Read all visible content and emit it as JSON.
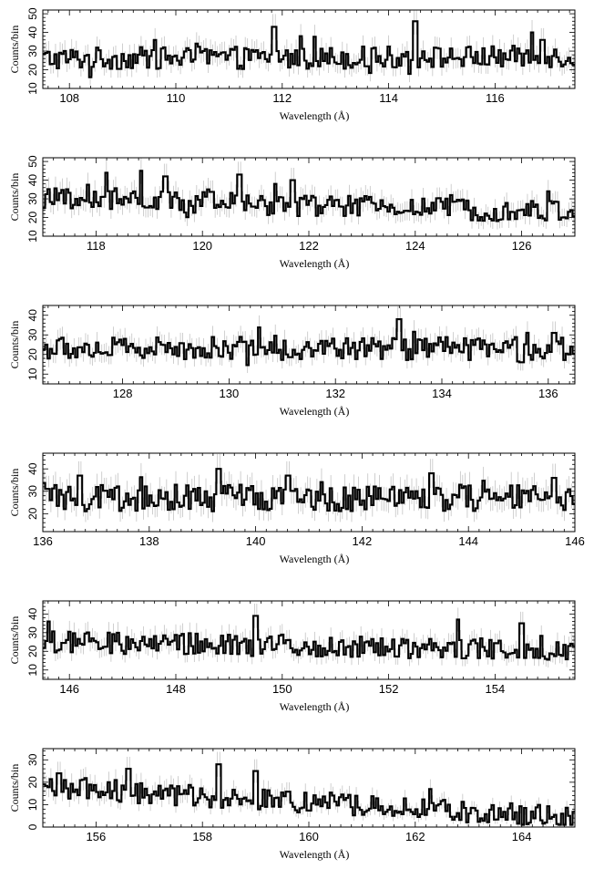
{
  "figure": {
    "description_colors": {
      "axis": "#000000",
      "histogram": "#000000",
      "error_bars": "#bbbbbb"
    }
  },
  "chart_data": [
    {
      "type": "line",
      "style": "histogram-step-with-error-bars",
      "xlabel": "Wavelength (Å)",
      "ylabel": "Counts/bin",
      "xlim": [
        107.5,
        117.5
      ],
      "ylim": [
        10,
        52
      ],
      "xticks": [
        108,
        110,
        112,
        114,
        116
      ],
      "yticks": [
        10,
        20,
        30,
        40,
        50
      ],
      "grid": false,
      "y_profile": {
        "x": [
          107.5,
          117.5
        ],
        "y": [
          26,
          27
        ]
      },
      "spikes": [
        {
          "x": 108.4,
          "y": 16
        },
        {
          "x": 109.6,
          "y": 36
        },
        {
          "x": 110.4,
          "y": 34
        },
        {
          "x": 111.85,
          "y": 43
        },
        {
          "x": 112.35,
          "y": 38
        },
        {
          "x": 114.5,
          "y": 46
        },
        {
          "x": 116.7,
          "y": 40
        },
        {
          "x": 116.9,
          "y": 36
        }
      ],
      "noise_amplitude": 6
    },
    {
      "type": "line",
      "style": "histogram-step-with-error-bars",
      "xlabel": "Wavelength (Å)",
      "ylabel": "Counts/bin",
      "xlim": [
        117,
        127
      ],
      "ylim": [
        10,
        52
      ],
      "xticks": [
        118,
        120,
        122,
        124,
        126
      ],
      "yticks": [
        10,
        20,
        30,
        40,
        50
      ],
      "grid": false,
      "y_profile": {
        "x": [
          117,
          127
        ],
        "y": [
          30,
          23
        ]
      },
      "spikes": [
        {
          "x": 118.2,
          "y": 44
        },
        {
          "x": 118.85,
          "y": 45
        },
        {
          "x": 119.3,
          "y": 42
        },
        {
          "x": 120.7,
          "y": 43
        },
        {
          "x": 121.7,
          "y": 40
        },
        {
          "x": 126.5,
          "y": 34
        }
      ],
      "noise_amplitude": 6
    },
    {
      "type": "line",
      "style": "histogram-step-with-error-bars",
      "xlabel": "Wavelength (Å)",
      "ylabel": "Counts/bin",
      "xlim": [
        126.5,
        136.5
      ],
      "ylim": [
        5,
        45
      ],
      "xticks": [
        128,
        130,
        132,
        134,
        136
      ],
      "yticks": [
        10,
        20,
        30,
        40
      ],
      "grid": false,
      "y_profile": {
        "x": [
          126.5,
          136.5
        ],
        "y": [
          23,
          23
        ]
      },
      "spikes": [
        {
          "x": 133.2,
          "y": 38
        },
        {
          "x": 135.5,
          "y": 16
        },
        {
          "x": 136.1,
          "y": 31
        }
      ],
      "noise_amplitude": 6
    },
    {
      "type": "line",
      "style": "histogram-step-with-error-bars",
      "xlabel": "Wavelength (Å)",
      "ylabel": "Counts/bin",
      "xlim": [
        136,
        146
      ],
      "ylim": [
        12,
        47
      ],
      "xticks": [
        136,
        138,
        140,
        142,
        144,
        146
      ],
      "yticks": [
        20,
        30,
        40
      ],
      "grid": false,
      "y_profile": {
        "x": [
          136,
          146
        ],
        "y": [
          27,
          27
        ]
      },
      "spikes": [
        {
          "x": 136.7,
          "y": 37
        },
        {
          "x": 139.3,
          "y": 40
        },
        {
          "x": 140.6,
          "y": 37
        },
        {
          "x": 143.3,
          "y": 38
        },
        {
          "x": 145.6,
          "y": 36
        }
      ],
      "noise_amplitude": 6
    },
    {
      "type": "line",
      "style": "histogram-step-with-error-bars",
      "xlabel": "Wavelength (Å)",
      "ylabel": "Counts/bin",
      "xlim": [
        145.5,
        155.5
      ],
      "ylim": [
        5,
        47
      ],
      "xticks": [
        146,
        148,
        150,
        152,
        154
      ],
      "yticks": [
        10,
        20,
        30,
        40
      ],
      "grid": false,
      "y_profile": {
        "x": [
          145.5,
          155.5
        ],
        "y": [
          25,
          21
        ]
      },
      "spikes": [
        {
          "x": 145.6,
          "y": 36
        },
        {
          "x": 149.5,
          "y": 39
        },
        {
          "x": 153.3,
          "y": 37
        },
        {
          "x": 154.5,
          "y": 35
        }
      ],
      "noise_amplitude": 6
    },
    {
      "type": "line",
      "style": "histogram-step-with-error-bars",
      "xlabel": "Wavelength (Å)",
      "ylabel": "Counts/bin",
      "xlim": [
        155,
        165
      ],
      "ylim": [
        0,
        35
      ],
      "xticks": [
        156,
        158,
        160,
        162,
        164
      ],
      "yticks": [
        0,
        10,
        20,
        30
      ],
      "grid": false,
      "y_profile": {
        "x": [
          155,
          165
        ],
        "y": [
          18,
          4
        ]
      },
      "spikes": [
        {
          "x": 155.3,
          "y": 24
        },
        {
          "x": 156.6,
          "y": 26
        },
        {
          "x": 158.3,
          "y": 28
        },
        {
          "x": 159.0,
          "y": 25
        }
      ],
      "noise_amplitude": 5
    }
  ]
}
